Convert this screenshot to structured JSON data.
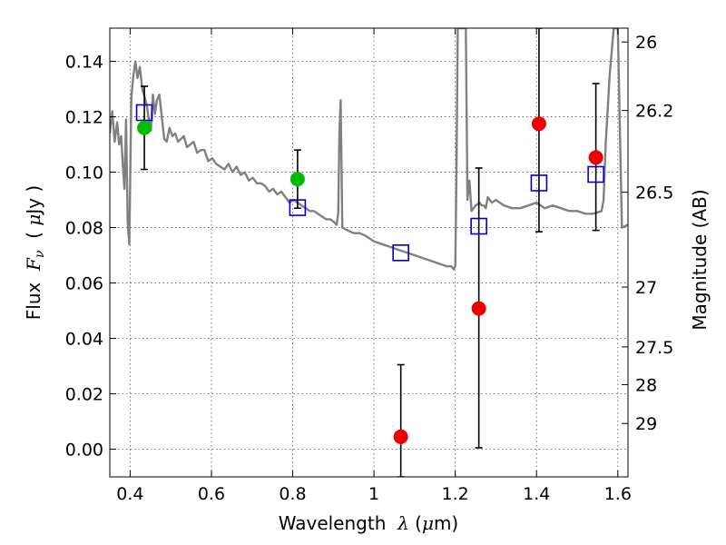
{
  "chart_data": {
    "type": "scatter",
    "title": "",
    "xlabel_prefix": "Wavelength  ",
    "xlabel_symbol": "λ",
    "xlabel_unit_open": " (",
    "xlabel_unit_mu": "μ",
    "xlabel_unit_rest": "m)",
    "ylabel_prefix": "Flux  ",
    "ylabel_symbol": "F",
    "ylabel_subscript": "ν",
    "ylabel_unit_open": "  ( ",
    "ylabel_unit_mu": "μ",
    "ylabel_unit_rest": "Jy )",
    "y2label": "Magnitude (AB)",
    "xlim": [
      0.35,
      1.625
    ],
    "ylim": [
      -0.01,
      0.152
    ],
    "grid": true,
    "x_ticks": [
      0.4,
      0.6,
      0.8,
      1.0,
      1.2,
      1.4,
      1.6
    ],
    "x_tick_labels": [
      "0.4",
      "0.6",
      "0.8",
      "1",
      "1.2",
      "1.4",
      "1.6"
    ],
    "y_ticks": [
      0.0,
      0.02,
      0.04,
      0.06,
      0.08,
      0.1,
      0.12,
      0.14
    ],
    "y_tick_labels": [
      "0.00",
      "0.02",
      "0.04",
      "0.06",
      "0.08",
      "0.10",
      "0.12",
      "0.14"
    ],
    "mag_ticks": [
      26,
      26.2,
      26.5,
      27,
      27.5,
      28,
      29
    ],
    "mag_tick_labels": [
      "26",
      "26.2",
      "26.5",
      "27",
      "27.5",
      "28",
      "29"
    ],
    "colors": {
      "model": "#808080",
      "detection": "#00bb00",
      "nondetection": "#ee0000",
      "synthetic": "#0000cc",
      "errorbar": "#000000",
      "grid": "#555555"
    },
    "series": [
      {
        "name": "model SED",
        "kind": "line",
        "x": [
          0.35,
          0.356,
          0.362,
          0.368,
          0.373,
          0.378,
          0.382,
          0.386,
          0.39,
          0.394,
          0.398,
          0.403,
          0.408,
          0.413,
          0.418,
          0.424,
          0.43,
          0.436,
          0.441,
          0.446,
          0.451,
          0.456,
          0.461,
          0.466,
          0.472,
          0.478,
          0.484,
          0.49,
          0.497,
          0.504,
          0.511,
          0.518,
          0.525,
          0.532,
          0.54,
          0.548,
          0.556,
          0.565,
          0.574,
          0.583,
          0.592,
          0.602,
          0.612,
          0.622,
          0.632,
          0.642,
          0.652,
          0.662,
          0.672,
          0.682,
          0.692,
          0.702,
          0.712,
          0.722,
          0.732,
          0.742,
          0.752,
          0.762,
          0.772,
          0.782,
          0.792,
          0.802,
          0.812,
          0.822,
          0.832,
          0.842,
          0.852,
          0.862,
          0.872,
          0.882,
          0.892,
          0.902,
          0.908,
          0.912,
          0.915,
          0.918,
          0.922,
          0.935,
          0.95,
          0.965,
          0.98,
          1.0,
          1.02,
          1.04,
          1.06,
          1.08,
          1.1,
          1.12,
          1.14,
          1.16,
          1.18,
          1.19,
          1.196,
          1.2,
          1.203,
          1.206,
          1.21,
          1.214,
          1.218,
          1.222,
          1.226,
          1.23,
          1.235,
          1.24,
          1.25,
          1.26,
          1.265,
          1.27,
          1.275,
          1.28,
          1.29,
          1.3,
          1.32,
          1.34,
          1.36,
          1.38,
          1.4,
          1.42,
          1.44,
          1.46,
          1.48,
          1.5,
          1.52,
          1.54,
          1.56,
          1.565,
          1.57,
          1.58,
          1.59,
          1.6,
          1.61,
          1.625
        ],
        "y": [
          0.114,
          0.122,
          0.111,
          0.118,
          0.11,
          0.113,
          0.103,
          0.094,
          0.119,
          0.082,
          0.074,
          0.127,
          0.135,
          0.14,
          0.134,
          0.138,
          0.13,
          0.127,
          0.124,
          0.119,
          0.115,
          0.128,
          0.121,
          0.126,
          0.128,
          0.12,
          0.112,
          0.111,
          0.116,
          0.113,
          0.114,
          0.111,
          0.112,
          0.113,
          0.109,
          0.11,
          0.111,
          0.107,
          0.108,
          0.108,
          0.104,
          0.105,
          0.103,
          0.102,
          0.101,
          0.103,
          0.1,
          0.102,
          0.099,
          0.1,
          0.097,
          0.098,
          0.096,
          0.096,
          0.095,
          0.093,
          0.094,
          0.092,
          0.093,
          0.091,
          0.089,
          0.09,
          0.089,
          0.088,
          0.087,
          0.086,
          0.086,
          0.085,
          0.084,
          0.083,
          0.083,
          0.082,
          0.081,
          0.085,
          0.114,
          0.126,
          0.08,
          0.079,
          0.078,
          0.078,
          0.077,
          0.075,
          0.074,
          0.073,
          0.072,
          0.071,
          0.07,
          0.069,
          0.068,
          0.067,
          0.066,
          0.066,
          0.065,
          0.066,
          0.1,
          0.152,
          0.152,
          0.152,
          0.152,
          0.152,
          0.152,
          0.09,
          0.097,
          0.086,
          0.088,
          0.089,
          0.088,
          0.088,
          0.087,
          0.091,
          0.089,
          0.09,
          0.088,
          0.087,
          0.087,
          0.088,
          0.089,
          0.087,
          0.088,
          0.087,
          0.086,
          0.086,
          0.085,
          0.085,
          0.086,
          0.09,
          0.11,
          0.135,
          0.152,
          0.152,
          0.08,
          0.081
        ]
      },
      {
        "name": "detections",
        "kind": "points",
        "color_key": "detection",
        "points": [
          {
            "x": 0.435,
            "y": 0.116
          },
          {
            "x": 0.812,
            "y": 0.0975
          }
        ]
      },
      {
        "name": "non-detections",
        "kind": "points",
        "color_key": "nondetection",
        "points": [
          {
            "x": 1.066,
            "y": 0.0045
          },
          {
            "x": 1.258,
            "y": 0.0508
          },
          {
            "x": 1.406,
            "y": 0.1175
          },
          {
            "x": 1.546,
            "y": 0.1053
          }
        ]
      },
      {
        "name": "synthetic photometry",
        "kind": "squares",
        "color_key": "synthetic",
        "points": [
          {
            "x": 0.435,
            "y": 0.1215
          },
          {
            "x": 0.812,
            "y": 0.0872
          },
          {
            "x": 1.066,
            "y": 0.0709
          },
          {
            "x": 1.258,
            "y": 0.0805
          },
          {
            "x": 1.406,
            "y": 0.0961
          },
          {
            "x": 1.546,
            "y": 0.0992
          }
        ]
      },
      {
        "name": "error bars",
        "kind": "errorbars",
        "bars": [
          {
            "x": 0.435,
            "low": 0.101,
            "high": 0.131
          },
          {
            "x": 0.812,
            "low": 0.087,
            "high": 0.108
          },
          {
            "x": 1.066,
            "low": -0.01,
            "high": 0.0305
          },
          {
            "x": 1.258,
            "low": 0.0005,
            "high": 0.1015
          },
          {
            "x": 1.406,
            "low": 0.0785,
            "high": 0.152
          },
          {
            "x": 1.546,
            "low": 0.079,
            "high": 0.132
          }
        ]
      }
    ]
  }
}
